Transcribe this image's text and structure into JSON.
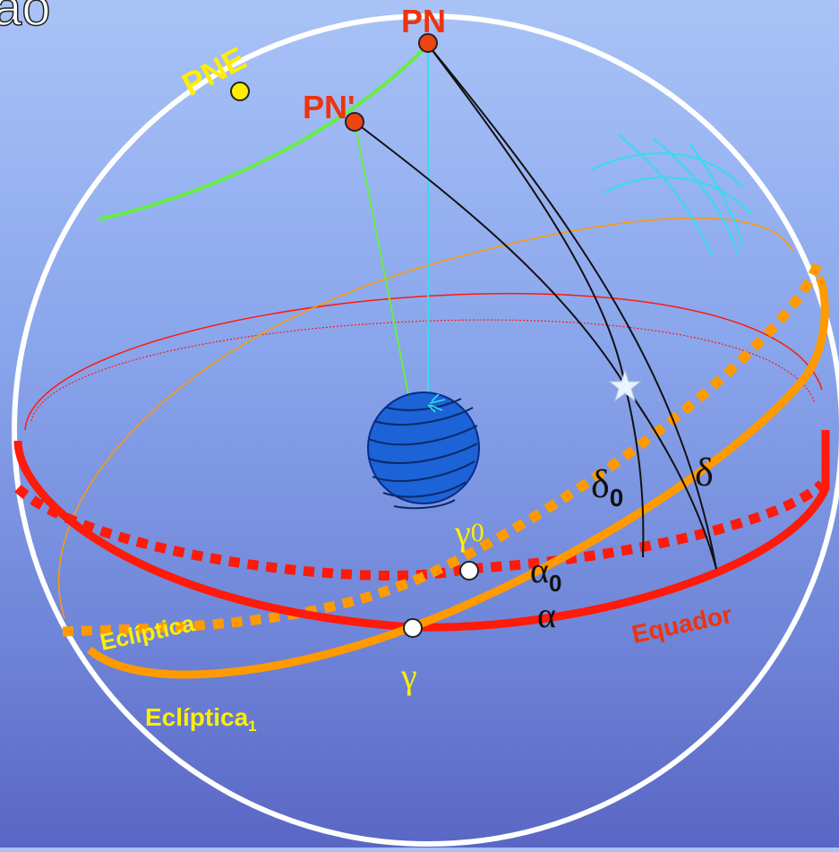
{
  "title_fragment": "ão",
  "labels": {
    "pn": "PN",
    "pn_prime": "PN'",
    "pne": "PNE",
    "ecliptica": "Eclíptica",
    "ecliptica1": "Eclíptica",
    "ecliptica1_sub": "1",
    "equador": "Equador",
    "gamma": "γ",
    "gamma0": "γ",
    "gamma0_sub": "0",
    "alpha": "α",
    "alpha0": "α",
    "alpha0_sub": "0",
    "delta": "δ",
    "delta0": "δ",
    "delta0_sub": "0"
  },
  "colors": {
    "sphere_outline": "#ffffff",
    "equator": "#ff1a0a",
    "ecliptic": "#ff9a00",
    "pole_precession_path": "#66ee44",
    "pole_marker": "#ee4411",
    "pne_marker": "#ffee00",
    "label_yellow": "#ffee00",
    "label_red": "#ee3311",
    "earth": "#1b63d6",
    "cyan_axis": "#33ddee"
  },
  "icons": {
    "star": "star-icon",
    "earth": "earth-globe-icon"
  }
}
